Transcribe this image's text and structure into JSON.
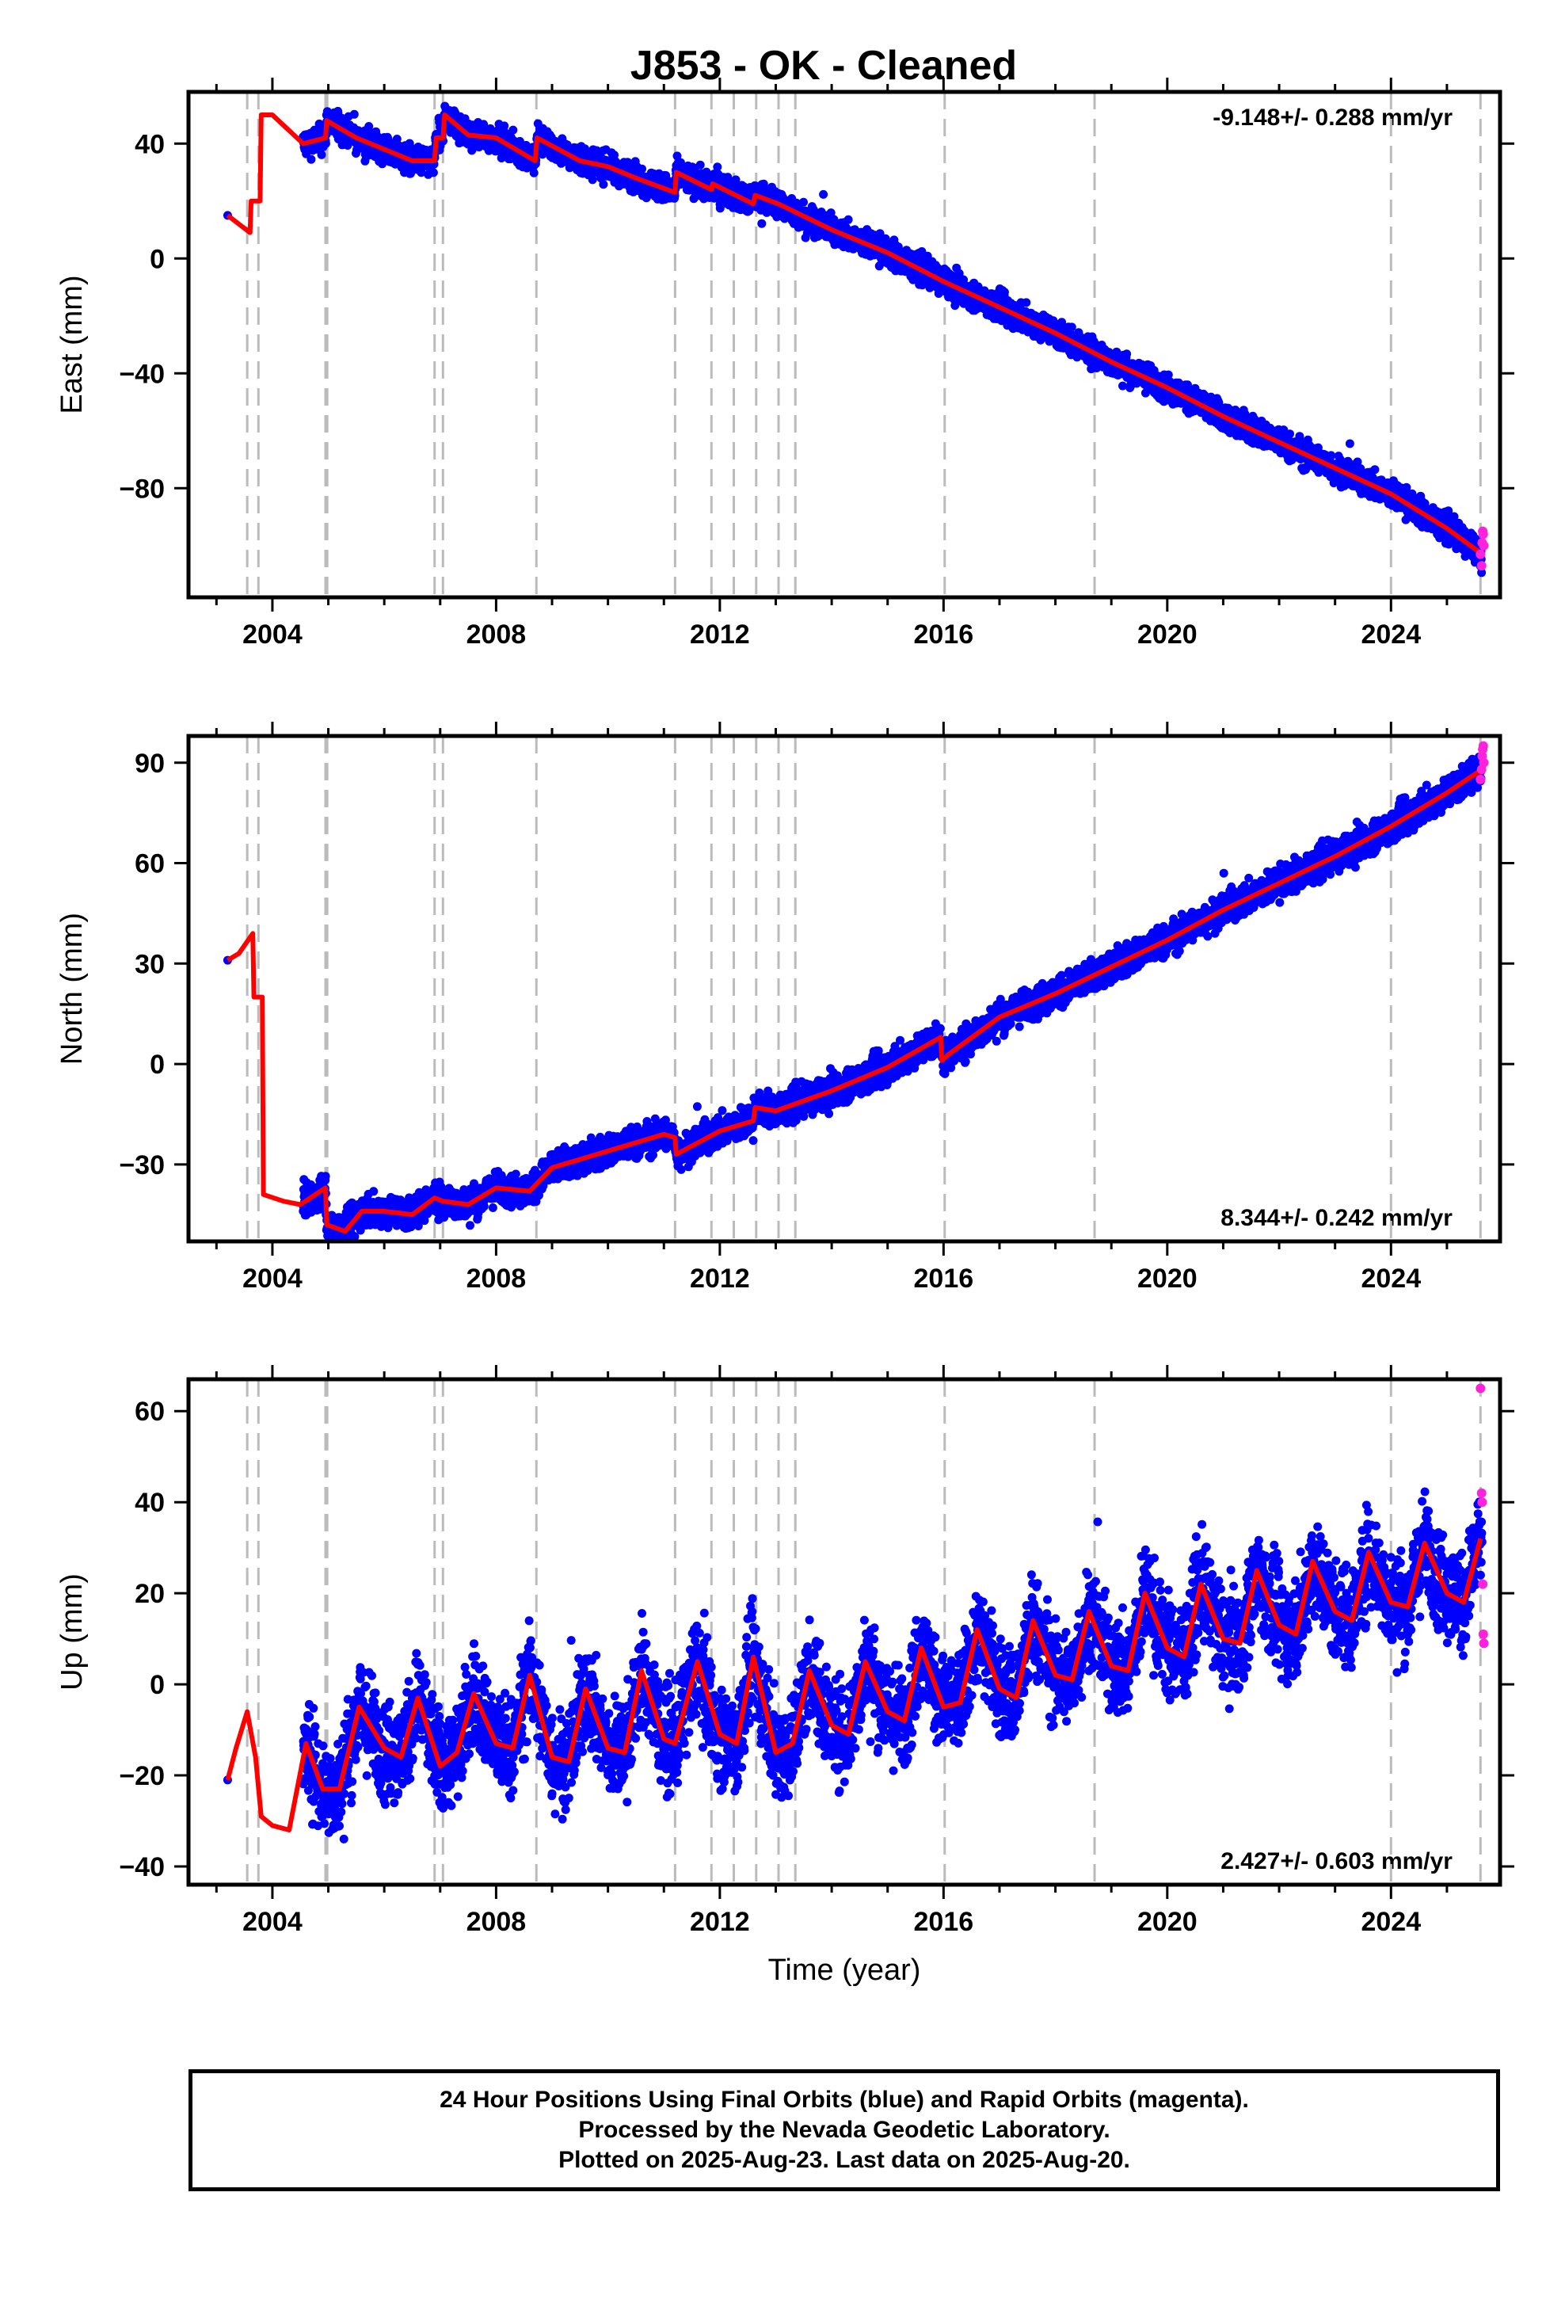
{
  "title": "J853  - OK - Cleaned",
  "colors": {
    "final_orbits": "#0000ff",
    "rapid_orbits": "#ff22dd",
    "model": "#ff0000",
    "event_lines": "#bbbbbb"
  },
  "chart_data": [
    {
      "type": "scatter",
      "panel": "east",
      "ylabel": "East (mm)",
      "xlabel": "",
      "xlim": [
        2002.5,
        2025.95
      ],
      "ylim": [
        -118,
        58
      ],
      "xticks": [
        2004,
        2008,
        2012,
        2016,
        2020,
        2024
      ],
      "yticks": [
        40,
        0,
        -40,
        -80
      ],
      "ytick_labels": [
        "40",
        "0",
        "−40",
        "−80"
      ],
      "rate": "-9.148+/- 0.288 mm/yr",
      "rate_position": "top-right",
      "events": [
        2003.55,
        2003.75,
        2004.95,
        2004.98,
        2006.9,
        2007.05,
        2008.72,
        2011.2,
        2011.85,
        2012.25,
        2012.65,
        2013.05,
        2013.35,
        2016.02,
        2018.7,
        2024.0,
        2025.6
      ],
      "final_anchors": [
        [
          2003.2,
          15
        ],
        [
          2004.6,
          41
        ],
        [
          2005.0,
          45
        ],
        [
          2006.0,
          38
        ],
        [
          2007.2,
          41
        ],
        [
          2008.0,
          40
        ],
        [
          2009.0,
          36
        ],
        [
          2010.0,
          31
        ],
        [
          2011.0,
          26
        ],
        [
          2012.0,
          23
        ],
        [
          2013.0,
          18
        ],
        [
          2014.0,
          10
        ],
        [
          2015.0,
          2
        ],
        [
          2016.0,
          -7
        ],
        [
          2017.0,
          -16
        ],
        [
          2018.0,
          -26
        ],
        [
          2019.0,
          -36
        ],
        [
          2020.0,
          -45
        ],
        [
          2021.0,
          -55
        ],
        [
          2022.0,
          -64
        ],
        [
          2023.0,
          -73
        ],
        [
          2024.0,
          -82
        ],
        [
          2025.0,
          -92
        ],
        [
          2025.63,
          -102
        ]
      ],
      "rapid_values": [
        [
          2025.6,
          -103
        ],
        [
          2025.62,
          -107
        ],
        [
          2025.63,
          -99
        ],
        [
          2025.64,
          -95
        ],
        [
          2025.65,
          -96
        ],
        [
          2025.66,
          -100
        ]
      ],
      "model_line": [
        [
          2003.2,
          15
        ],
        [
          2003.6,
          9
        ],
        [
          2003.62,
          20
        ],
        [
          2003.78,
          20
        ],
        [
          2003.8,
          50
        ],
        [
          2004.0,
          50
        ],
        [
          2004.55,
          40
        ],
        [
          2004.95,
          42
        ],
        [
          2004.97,
          48
        ],
        [
          2005.5,
          42
        ],
        [
          2006.0,
          38
        ],
        [
          2006.5,
          34
        ],
        [
          2006.9,
          34
        ],
        [
          2006.93,
          42
        ],
        [
          2007.05,
          42
        ],
        [
          2007.08,
          50
        ],
        [
          2007.5,
          43
        ],
        [
          2008.0,
          42
        ],
        [
          2008.7,
          34
        ],
        [
          2008.73,
          42
        ],
        [
          2009.5,
          34
        ],
        [
          2010.0,
          32
        ],
        [
          2010.5,
          28
        ],
        [
          2011.2,
          23
        ],
        [
          2011.22,
          30
        ],
        [
          2011.85,
          24
        ],
        [
          2011.87,
          26
        ],
        [
          2012.6,
          19
        ],
        [
          2012.63,
          22
        ],
        [
          2013.05,
          19
        ],
        [
          2014.0,
          10
        ],
        [
          2015.0,
          2
        ],
        [
          2016.0,
          -8
        ],
        [
          2017.0,
          -17
        ],
        [
          2018.0,
          -26
        ],
        [
          2019.0,
          -36
        ],
        [
          2020.0,
          -45
        ],
        [
          2021.0,
          -55
        ],
        [
          2022.0,
          -64
        ],
        [
          2023.0,
          -73
        ],
        [
          2024.0,
          -82
        ],
        [
          2025.0,
          -94
        ],
        [
          2025.63,
          -103
        ]
      ]
    },
    {
      "type": "scatter",
      "panel": "north",
      "ylabel": "North (mm)",
      "xlabel": "",
      "xlim": [
        2002.5,
        2025.95
      ],
      "ylim": [
        -53,
        98
      ],
      "xticks": [
        2004,
        2008,
        2012,
        2016,
        2020,
        2024
      ],
      "yticks": [
        90,
        60,
        30,
        0,
        -30
      ],
      "ytick_labels": [
        "90",
        "60",
        "30",
        "0",
        "−30"
      ],
      "rate": "8.344+/- 0.242 mm/yr",
      "rate_position": "bottom-right",
      "events": [
        2003.55,
        2003.75,
        2004.95,
        2004.98,
        2006.9,
        2007.05,
        2008.72,
        2011.2,
        2011.85,
        2012.25,
        2012.65,
        2013.05,
        2013.35,
        2016.02,
        2018.7,
        2024.0,
        2025.6
      ],
      "final_anchors": [
        [
          2003.2,
          31
        ],
        [
          2004.6,
          -32
        ],
        [
          2005.0,
          -40
        ],
        [
          2006.0,
          -43
        ],
        [
          2007.0,
          -40
        ],
        [
          2008.0,
          -36
        ],
        [
          2009.0,
          -30
        ],
        [
          2010.0,
          -25
        ],
        [
          2011.0,
          -20
        ],
        [
          2012.0,
          -18
        ],
        [
          2013.0,
          -12
        ],
        [
          2014.0,
          -7
        ],
        [
          2015.0,
          0
        ],
        [
          2016.0,
          6
        ],
        [
          2017.0,
          14
        ],
        [
          2018.0,
          21
        ],
        [
          2019.0,
          29
        ],
        [
          2020.0,
          37
        ],
        [
          2021.0,
          45
        ],
        [
          2022.0,
          53
        ],
        [
          2023.0,
          62
        ],
        [
          2024.0,
          71
        ],
        [
          2025.0,
          80
        ],
        [
          2025.63,
          88
        ]
      ],
      "rapid_values": [
        [
          2025.6,
          85
        ],
        [
          2025.62,
          88
        ],
        [
          2025.63,
          92
        ],
        [
          2025.64,
          94
        ],
        [
          2025.65,
          95
        ],
        [
          2025.66,
          90
        ]
      ],
      "model_line": [
        [
          2003.2,
          31
        ],
        [
          2003.4,
          33
        ],
        [
          2003.65,
          39
        ],
        [
          2003.67,
          20
        ],
        [
          2003.82,
          20
        ],
        [
          2003.84,
          -39
        ],
        [
          2004.2,
          -41
        ],
        [
          2004.5,
          -42
        ],
        [
          2004.95,
          -37
        ],
        [
          2004.97,
          -48
        ],
        [
          2005.3,
          -50
        ],
        [
          2005.6,
          -44
        ],
        [
          2006.0,
          -44
        ],
        [
          2006.5,
          -45
        ],
        [
          2006.9,
          -40
        ],
        [
          2007.05,
          -41
        ],
        [
          2007.5,
          -42
        ],
        [
          2008.0,
          -37
        ],
        [
          2008.6,
          -38
        ],
        [
          2009.0,
          -31
        ],
        [
          2010.0,
          -26
        ],
        [
          2011.0,
          -21
        ],
        [
          2011.2,
          -22
        ],
        [
          2011.22,
          -27
        ],
        [
          2012.0,
          -20
        ],
        [
          2012.6,
          -17
        ],
        [
          2012.63,
          -13
        ],
        [
          2013.0,
          -14
        ],
        [
          2014.0,
          -8
        ],
        [
          2015.0,
          -1
        ],
        [
          2015.95,
          8
        ],
        [
          2015.97,
          1
        ],
        [
          2016.1,
          3
        ],
        [
          2017.0,
          14
        ],
        [
          2018.0,
          21
        ],
        [
          2019.0,
          29
        ],
        [
          2020.0,
          37
        ],
        [
          2021.0,
          46
        ],
        [
          2022.0,
          54
        ],
        [
          2023.0,
          62
        ],
        [
          2024.0,
          71
        ],
        [
          2025.0,
          81
        ],
        [
          2025.63,
          88
        ]
      ]
    },
    {
      "type": "scatter",
      "panel": "up",
      "ylabel": "Up (mm)",
      "xlabel": "Time (year)",
      "xlim": [
        2002.5,
        2025.95
      ],
      "ylim": [
        -44,
        67
      ],
      "xticks": [
        2004,
        2008,
        2012,
        2016,
        2020,
        2024
      ],
      "yticks": [
        60,
        40,
        20,
        0,
        -20,
        -40
      ],
      "ytick_labels": [
        "60",
        "40",
        "20",
        "0",
        "−20",
        "−40"
      ],
      "rate": "2.427+/- 0.603 mm/yr",
      "rate_position": "bottom-right",
      "events": [
        2003.55,
        2003.75,
        2004.95,
        2004.98,
        2006.9,
        2007.05,
        2008.72,
        2011.2,
        2011.85,
        2012.25,
        2012.65,
        2013.05,
        2013.35,
        2016.02,
        2018.7,
        2024.0,
        2025.6
      ],
      "final_anchors": [
        [
          2003.2,
          -21
        ],
        [
          2004.6,
          -22
        ],
        [
          2005.0,
          -22
        ],
        [
          2006.0,
          -12
        ],
        [
          2007.0,
          -10
        ],
        [
          2008.0,
          -8
        ],
        [
          2009.0,
          -8
        ],
        [
          2010.0,
          -7
        ],
        [
          2011.0,
          -5
        ],
        [
          2012.0,
          -4
        ],
        [
          2013.0,
          -3
        ],
        [
          2014.0,
          -2
        ],
        [
          2015.0,
          0
        ],
        [
          2016.0,
          2
        ],
        [
          2017.0,
          4
        ],
        [
          2018.0,
          6
        ],
        [
          2019.0,
          9
        ],
        [
          2020.0,
          11
        ],
        [
          2021.0,
          14
        ],
        [
          2022.0,
          16
        ],
        [
          2023.0,
          19
        ],
        [
          2024.0,
          21
        ],
        [
          2025.0,
          24
        ],
        [
          2025.63,
          25
        ]
      ],
      "rapid_values": [
        [
          2025.6,
          65
        ],
        [
          2025.62,
          42
        ],
        [
          2025.63,
          40
        ],
        [
          2025.64,
          22
        ],
        [
          2025.65,
          11
        ],
        [
          2025.66,
          9
        ]
      ],
      "model_line": [
        [
          2003.2,
          -21
        ],
        [
          2003.35,
          -14
        ],
        [
          2003.55,
          -6
        ],
        [
          2003.7,
          -16
        ],
        [
          2003.8,
          -29
        ],
        [
          2004.0,
          -31
        ],
        [
          2004.3,
          -32
        ],
        [
          2004.6,
          -13
        ],
        [
          2004.9,
          -23
        ],
        [
          2005.2,
          -23
        ],
        [
          2005.55,
          -5
        ],
        [
          2006.0,
          -14
        ],
        [
          2006.3,
          -16
        ],
        [
          2006.6,
          -3
        ],
        [
          2007.0,
          -18
        ],
        [
          2007.3,
          -15
        ],
        [
          2007.6,
          -2
        ],
        [
          2008.0,
          -13
        ],
        [
          2008.3,
          -14
        ],
        [
          2008.6,
          2
        ],
        [
          2009.0,
          -16
        ],
        [
          2009.3,
          -17
        ],
        [
          2009.6,
          -1
        ],
        [
          2010.0,
          -14
        ],
        [
          2010.3,
          -15
        ],
        [
          2010.6,
          3
        ],
        [
          2011.0,
          -12
        ],
        [
          2011.2,
          -13
        ],
        [
          2011.6,
          5
        ],
        [
          2012.0,
          -11
        ],
        [
          2012.3,
          -13
        ],
        [
          2012.6,
          6
        ],
        [
          2013.0,
          -15
        ],
        [
          2013.3,
          -13
        ],
        [
          2013.6,
          3
        ],
        [
          2014.0,
          -9
        ],
        [
          2014.3,
          -11
        ],
        [
          2014.6,
          5
        ],
        [
          2015.0,
          -6
        ],
        [
          2015.3,
          -8
        ],
        [
          2015.6,
          8
        ],
        [
          2016.0,
          -5
        ],
        [
          2016.3,
          -4
        ],
        [
          2016.6,
          12
        ],
        [
          2017.0,
          -1
        ],
        [
          2017.3,
          -3
        ],
        [
          2017.6,
          14
        ],
        [
          2018.0,
          2
        ],
        [
          2018.3,
          1
        ],
        [
          2018.6,
          16
        ],
        [
          2019.0,
          4
        ],
        [
          2019.3,
          3
        ],
        [
          2019.6,
          20
        ],
        [
          2020.0,
          8
        ],
        [
          2020.3,
          6
        ],
        [
          2020.6,
          22
        ],
        [
          2021.0,
          10
        ],
        [
          2021.3,
          9
        ],
        [
          2021.6,
          25
        ],
        [
          2022.0,
          13
        ],
        [
          2022.3,
          11
        ],
        [
          2022.6,
          27
        ],
        [
          2023.0,
          16
        ],
        [
          2023.3,
          14
        ],
        [
          2023.6,
          29
        ],
        [
          2024.0,
          18
        ],
        [
          2024.3,
          17
        ],
        [
          2024.6,
          31
        ],
        [
          2025.0,
          20
        ],
        [
          2025.3,
          18
        ],
        [
          2025.6,
          32
        ]
      ]
    }
  ],
  "footer": {
    "line1": "24 Hour Positions Using Final Orbits (blue) and Rapid Orbits (magenta).",
    "line2": "Processed by the Nevada Geodetic Laboratory.",
    "line3": "Plotted on 2025-Aug-23. Last data on 2025-Aug-20."
  }
}
